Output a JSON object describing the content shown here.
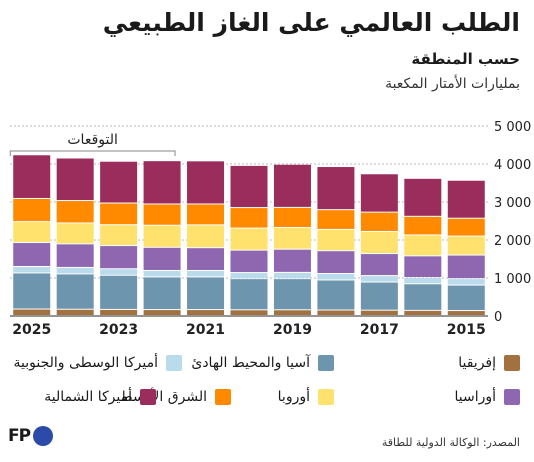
{
  "title": "الطلب العالمي على الغاز الطبيعي",
  "subtitle": "حسب المنطقة",
  "unit": "بمليارات الأمتار المكعبة",
  "source": "المصدر: الوكالة الدولية للطاقة",
  "logo_text": "FP",
  "forecast_label": "التوقعات",
  "colors": {
    "africa": "#a1723f",
    "asia_pacific": "#6d95ad",
    "latin_america": "#b9dbeb",
    "eurasia": "#8e67b0",
    "europe": "#ffe26e",
    "middle_east": "#ff8a00",
    "north_america": "#9b2d5d"
  },
  "legend": [
    {
      "key": "africa",
      "label": "إفريقيا"
    },
    {
      "key": "asia_pacific",
      "label": "آسيا والمحيط الهادئ"
    },
    {
      "key": "latin_america",
      "label": "أميركا الوسطى والجنوبية"
    },
    {
      "key": "eurasia",
      "label": "أوراسيا"
    },
    {
      "key": "europe",
      "label": "أوروبا"
    },
    {
      "key": "middle_east",
      "label": "الشرق الأوسط"
    },
    {
      "key": "north_america",
      "label": "أميركا الشمالية"
    }
  ],
  "chart_data": {
    "type": "bar",
    "stacked": true,
    "categories": [
      "2025",
      "2024",
      "2023",
      "2022",
      "2021",
      "2020",
      "2019",
      "2018",
      "2017",
      "2016",
      "2015"
    ],
    "x_tick_labels": [
      "2025",
      "2023",
      "2021",
      "2019",
      "2017",
      "2015"
    ],
    "ylim": [
      0,
      5000
    ],
    "y_ticks": [
      0,
      1000,
      2000,
      3000,
      4000,
      5000
    ],
    "y_tick_labels": [
      "0",
      "1 000",
      "2 000",
      "3 000",
      "4 000",
      "5 000"
    ],
    "grid": true,
    "forecast_range": [
      "2025",
      "2021"
    ],
    "series": [
      {
        "key": "africa",
        "name": "إفريقيا",
        "values": [
          170,
          165,
          160,
          155,
          155,
          150,
          150,
          145,
          140,
          135,
          130
        ]
      },
      {
        "key": "asia_pacific",
        "name": "آسيا والمحيط الهادئ",
        "values": [
          950,
          930,
          900,
          860,
          860,
          820,
          820,
          790,
          740,
          700,
          670
        ]
      },
      {
        "key": "latin_america",
        "name": "أميركا الوسطى والجنوبية",
        "values": [
          170,
          170,
          170,
          170,
          170,
          160,
          165,
          170,
          170,
          165,
          170
        ]
      },
      {
        "key": "eurasia",
        "name": "أوراسيا",
        "values": [
          630,
          620,
          610,
          610,
          600,
          590,
          610,
          600,
          580,
          570,
          620
        ]
      },
      {
        "key": "europe",
        "name": "أوروبا",
        "values": [
          550,
          550,
          550,
          580,
          600,
          580,
          570,
          560,
          580,
          550,
          500
        ]
      },
      {
        "key": "middle_east",
        "name": "الشرق الأوسط",
        "values": [
          610,
          590,
          570,
          560,
          550,
          540,
          530,
          520,
          510,
          490,
          470
        ]
      },
      {
        "key": "north_america",
        "name": "أميركا الشمالية",
        "values": [
          1150,
          1120,
          1100,
          1140,
          1135,
          1110,
          1135,
          1135,
          1010,
          1000,
          1000
        ]
      }
    ]
  }
}
